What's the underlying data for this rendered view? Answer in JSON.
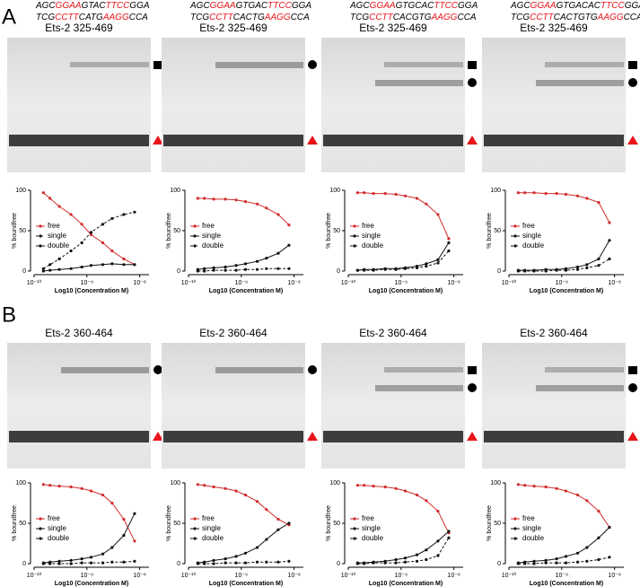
{
  "panels": [
    {
      "label": "A",
      "gel_titles": [
        "Ets-2 325-469",
        "Ets-2 325-469",
        "Ets-2 325-469",
        "Ets-2 325-469"
      ],
      "sequences": [
        [
          [
            "AGC",
            "GGAA",
            "GTAC",
            "TTCC",
            "GGA"
          ],
          [
            "TCG",
            "CCTT",
            "CATG",
            "AAGG",
            "CCA"
          ]
        ],
        [
          [
            "AGC",
            "GGAA",
            "GTGAC",
            "TTCC",
            "GGA"
          ],
          [
            "TCG",
            "CCTT",
            "CACTG",
            "AAGG",
            "CCA"
          ]
        ],
        [
          [
            "AGC",
            "GGAA",
            "GTGCAC",
            "TTCC",
            "GGA"
          ],
          [
            "TCG",
            "CCTT",
            "CACGTG",
            "AAGG",
            "CCA"
          ]
        ],
        [
          [
            "AGC",
            "GGAA",
            "GTGACAC",
            "TTCC",
            "GGA"
          ],
          [
            "TCG",
            "CCTT",
            "CACTGTG",
            "AAGG",
            "CCA"
          ]
        ]
      ]
    },
    {
      "label": "B",
      "gel_titles": [
        "Ets-2 360-464",
        "Ets-2 360-464",
        "Ets-2 360-464",
        "Ets-2 360-464"
      ]
    }
  ],
  "chart_data": [
    {
      "type": "line",
      "ylabel": "% boundfree",
      "xlabel": "Log10 (Concentration M)",
      "log_x": true,
      "xlim": [
        1e-10,
        1.5e-08
      ],
      "ylim": [
        0,
        100
      ],
      "yticks": [
        0,
        50,
        100
      ],
      "xticks": [
        {
          "value": 1e-10,
          "label": "10⁻¹⁰"
        },
        {
          "value": 1e-09,
          "label": "10⁻⁹"
        },
        {
          "value": 1e-08,
          "label": "10⁻⁸"
        }
      ],
      "x": [
        1.5e-10,
        2e-10,
        3e-10,
        5e-10,
        8e-10,
        1.2e-09,
        2e-09,
        3e-09,
        5e-09,
        8e-09
      ],
      "series": [
        {
          "name": "free",
          "color": "#d22b2b",
          "values": [
            97,
            90,
            80,
            70,
            58,
            45,
            35,
            25,
            15,
            8
          ]
        },
        {
          "name": "single",
          "color": "#111111",
          "dashed": true,
          "values": [
            3,
            8,
            15,
            25,
            35,
            48,
            58,
            65,
            70,
            73
          ]
        },
        {
          "name": "double",
          "color": "#111111",
          "values": [
            0,
            1,
            2,
            3,
            5,
            7,
            8,
            9,
            8,
            8
          ]
        }
      ]
    },
    {
      "type": "line",
      "ylabel": "% boundfree",
      "xlabel": "Log10 (Concentration M)",
      "log_x": true,
      "xlim": [
        1e-10,
        1.5e-08
      ],
      "ylim": [
        0,
        100
      ],
      "yticks": [
        0,
        50,
        100
      ],
      "xticks": [
        {
          "value": 1e-10,
          "label": "10⁻¹⁰"
        },
        {
          "value": 1e-09,
          "label": "10⁻⁹"
        },
        {
          "value": 1e-08,
          "label": "10⁻⁸"
        }
      ],
      "x": [
        1.5e-10,
        2e-10,
        3e-10,
        5e-10,
        8e-10,
        1.2e-09,
        2e-09,
        3e-09,
        5e-09,
        8e-09
      ],
      "series": [
        {
          "name": "free",
          "color": "#d22b2b",
          "values": [
            90,
            90,
            89,
            89,
            88,
            86,
            83,
            78,
            70,
            57
          ]
        },
        {
          "name": "single",
          "color": "#111111",
          "values": [
            2,
            3,
            4,
            5,
            7,
            9,
            12,
            16,
            22,
            32
          ]
        },
        {
          "name": "double",
          "color": "#111111",
          "dashed": true,
          "values": [
            0,
            0,
            1,
            1,
            1,
            2,
            2,
            3,
            3,
            3
          ]
        }
      ]
    },
    {
      "type": "line",
      "ylabel": "% boundfree",
      "xlabel": "Log10 (Concentration M)",
      "log_x": true,
      "xlim": [
        1e-10,
        1.5e-08
      ],
      "ylim": [
        0,
        100
      ],
      "yticks": [
        0,
        50,
        100
      ],
      "xticks": [
        {
          "value": 1e-10,
          "label": "10⁻¹⁰"
        },
        {
          "value": 1e-09,
          "label": "10⁻⁹"
        },
        {
          "value": 1e-08,
          "label": "10⁻⁸"
        }
      ],
      "x": [
        1.5e-10,
        2e-10,
        3e-10,
        5e-10,
        8e-10,
        1.2e-09,
        2e-09,
        3e-09,
        5e-09,
        8e-09
      ],
      "series": [
        {
          "name": "free",
          "color": "#d22b2b",
          "values": [
            97,
            97,
            96,
            96,
            95,
            93,
            90,
            83,
            70,
            40
          ]
        },
        {
          "name": "single",
          "color": "#111111",
          "values": [
            1,
            2,
            2,
            3,
            3,
            4,
            6,
            9,
            14,
            35
          ]
        },
        {
          "name": "double",
          "color": "#111111",
          "dashed": true,
          "values": [
            1,
            1,
            1,
            2,
            2,
            3,
            4,
            6,
            10,
            25
          ]
        }
      ]
    },
    {
      "type": "line",
      "ylabel": "% boundfree",
      "xlabel": "Log10 (Concentration M)",
      "log_x": true,
      "xlim": [
        1e-10,
        1.5e-08
      ],
      "ylim": [
        0,
        100
      ],
      "yticks": [
        0,
        50,
        100
      ],
      "xticks": [
        {
          "value": 1e-10,
          "label": "10⁻¹⁰"
        },
        {
          "value": 1e-09,
          "label": "10⁻⁹"
        },
        {
          "value": 1e-08,
          "label": "10⁻⁸"
        }
      ],
      "x": [
        1.5e-10,
        2e-10,
        3e-10,
        5e-10,
        8e-10,
        1.2e-09,
        2e-09,
        3e-09,
        5e-09,
        8e-09
      ],
      "series": [
        {
          "name": "free",
          "color": "#d22b2b",
          "values": [
            97,
            97,
            97,
            96,
            96,
            95,
            93,
            90,
            85,
            60
          ]
        },
        {
          "name": "single",
          "color": "#111111",
          "values": [
            1,
            1,
            1,
            2,
            2,
            3,
            5,
            8,
            15,
            38
          ]
        },
        {
          "name": "double",
          "color": "#111111",
          "dashed": true,
          "values": [
            0,
            0,
            0,
            0,
            1,
            1,
            2,
            4,
            7,
            15
          ]
        }
      ]
    },
    {
      "type": "line",
      "ylabel": "% boundfree",
      "xlabel": "Log10 (Concentration M)",
      "log_x": true,
      "xlim": [
        1e-10,
        1.5e-08
      ],
      "ylim": [
        0,
        100
      ],
      "yticks": [
        0,
        50,
        100
      ],
      "xticks": [
        {
          "value": 1e-10,
          "label": "10⁻¹⁰"
        },
        {
          "value": 1e-09,
          "label": "10⁻⁹"
        },
        {
          "value": 1e-08,
          "label": "10⁻⁸"
        }
      ],
      "x": [
        1.5e-10,
        2e-10,
        3e-10,
        5e-10,
        8e-10,
        1.2e-09,
        2e-09,
        3e-09,
        5e-09,
        8e-09
      ],
      "series": [
        {
          "name": "free",
          "color": "#d22b2b",
          "values": [
            98,
            97,
            96,
            95,
            93,
            90,
            85,
            75,
            55,
            28
          ]
        },
        {
          "name": "single",
          "color": "#111111",
          "values": [
            1,
            2,
            3,
            4,
            6,
            8,
            12,
            20,
            35,
            62
          ]
        },
        {
          "name": "double",
          "color": "#111111",
          "dashed": true,
          "values": [
            0,
            0,
            0,
            0,
            1,
            1,
            1,
            2,
            2,
            3
          ]
        }
      ]
    },
    {
      "type": "line",
      "ylabel": "% boundfree",
      "xlabel": "Log10 (Concentration M)",
      "log_x": true,
      "xlim": [
        1e-10,
        1.5e-08
      ],
      "ylim": [
        0,
        100
      ],
      "yticks": [
        0,
        50,
        100
      ],
      "xticks": [
        {
          "value": 1e-10,
          "label": "10⁻¹⁰"
        },
        {
          "value": 1e-09,
          "label": "10⁻⁹"
        },
        {
          "value": 1e-08,
          "label": "10⁻⁸"
        }
      ],
      "x": [
        1.5e-10,
        2e-10,
        3e-10,
        5e-10,
        8e-10,
        1.2e-09,
        2e-09,
        3e-09,
        5e-09,
        8e-09
      ],
      "series": [
        {
          "name": "free",
          "color": "#d22b2b",
          "values": [
            98,
            97,
            95,
            93,
            90,
            85,
            77,
            67,
            55,
            48
          ]
        },
        {
          "name": "single",
          "color": "#111111",
          "values": [
            1,
            2,
            4,
            6,
            9,
            13,
            20,
            30,
            42,
            50
          ]
        },
        {
          "name": "double",
          "color": "#111111",
          "dashed": true,
          "values": [
            0,
            0,
            0,
            1,
            1,
            1,
            2,
            2,
            2,
            3
          ]
        }
      ]
    },
    {
      "type": "line",
      "ylabel": "% boundfree",
      "xlabel": "Log10 (Concentration M)",
      "log_x": true,
      "xlim": [
        1e-10,
        1.5e-08
      ],
      "ylim": [
        0,
        100
      ],
      "yticks": [
        0,
        50,
        100
      ],
      "xticks": [
        {
          "value": 1e-10,
          "label": "10⁻¹⁰"
        },
        {
          "value": 1e-09,
          "label": "10⁻⁹"
        },
        {
          "value": 1e-08,
          "label": "10⁻⁸"
        }
      ],
      "x": [
        1.5e-10,
        2e-10,
        3e-10,
        5e-10,
        8e-10,
        1.2e-09,
        2e-09,
        3e-09,
        5e-09,
        8e-09
      ],
      "series": [
        {
          "name": "free",
          "color": "#d22b2b",
          "values": [
            97,
            97,
            96,
            95,
            93,
            90,
            85,
            78,
            65,
            38
          ]
        },
        {
          "name": "single",
          "color": "#111111",
          "values": [
            1,
            1,
            2,
            3,
            5,
            7,
            11,
            17,
            28,
            40
          ]
        },
        {
          "name": "double",
          "color": "#111111",
          "dashed": true,
          "values": [
            0,
            0,
            1,
            1,
            1,
            2,
            3,
            5,
            10,
            32
          ]
        }
      ]
    },
    {
      "type": "line",
      "ylabel": "% boundfree",
      "xlabel": "Log10 (Concentration M)",
      "log_x": true,
      "xlim": [
        1e-10,
        1.5e-08
      ],
      "ylim": [
        0,
        100
      ],
      "yticks": [
        0,
        50,
        100
      ],
      "xticks": [
        {
          "value": 1e-10,
          "label": "10⁻¹⁰"
        },
        {
          "value": 1e-09,
          "label": "10⁻⁹"
        },
        {
          "value": 1e-08,
          "label": "10⁻⁸"
        }
      ],
      "x": [
        1.5e-10,
        2e-10,
        3e-10,
        5e-10,
        8e-10,
        1.2e-09,
        2e-09,
        3e-09,
        5e-09,
        8e-09
      ],
      "series": [
        {
          "name": "free",
          "color": "#d22b2b",
          "values": [
            98,
            97,
            96,
            95,
            93,
            90,
            85,
            78,
            65,
            45
          ]
        },
        {
          "name": "single",
          "color": "#111111",
          "values": [
            1,
            2,
            3,
            4,
            6,
            9,
            13,
            20,
            32,
            45
          ]
        },
        {
          "name": "double",
          "color": "#111111",
          "dashed": true,
          "values": [
            0,
            0,
            0,
            1,
            1,
            1,
            2,
            3,
            5,
            8
          ]
        }
      ]
    }
  ]
}
